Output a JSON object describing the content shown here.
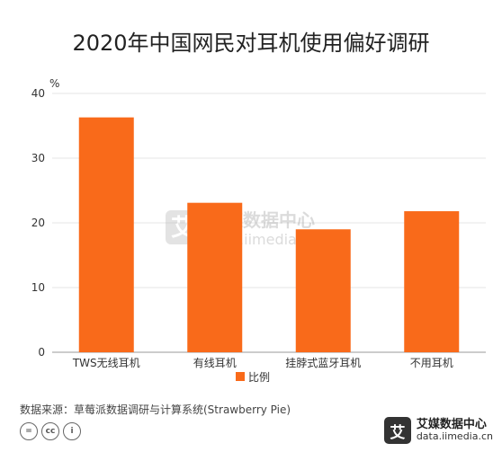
{
  "chart_data": {
    "type": "bar",
    "title": "2020年中国网民对耳机使用偏好调研",
    "ylabel": "%",
    "categories": [
      "TWS无线耳机",
      "有线耳机",
      "挂脖式蓝牙耳机",
      "不用耳机"
    ],
    "series": [
      {
        "name": "比例",
        "values": [
          36.3,
          23.1,
          19.0,
          21.8
        ]
      }
    ],
    "ylim": [
      0,
      40
    ],
    "yticks": [
      0,
      10,
      20,
      30,
      40
    ],
    "grid": true,
    "legend": "bottom-center",
    "bar_color": "#F96A1A"
  },
  "watermark": {
    "logo_char": "艾",
    "name": "艾媒数据中心",
    "url": "data.iimedia.cn"
  },
  "footer": {
    "source": "数据来源：草莓派数据调研与计算系统(Strawberry  Pie)",
    "cc_icons": [
      "=",
      "cc",
      "i"
    ],
    "brand_logo": "艾",
    "brand_name": "艾媒数据中心",
    "brand_url": "data.iimedia.cn"
  }
}
